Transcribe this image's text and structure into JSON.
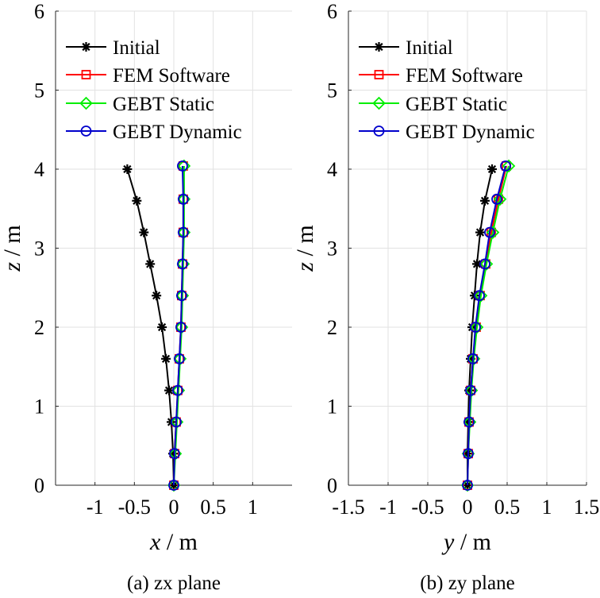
{
  "chart_data": [
    {
      "type": "line",
      "caption": "(a) zx plane",
      "xlabel_var": "x",
      "xlabel_unit": " / m",
      "ylabel_var": "z",
      "ylabel_unit": " / m",
      "xlim": [
        -1.5,
        1.5
      ],
      "ylim": [
        0,
        6
      ],
      "xticks": [
        -1,
        -0.5,
        0,
        0.5,
        1
      ],
      "xtick_labels": [
        "-1",
        "-0.5",
        "0",
        "0.5",
        "1"
      ],
      "yticks": [
        0,
        1,
        2,
        3,
        4,
        5,
        6
      ],
      "ytick_labels": [
        "0",
        "1",
        "2",
        "3",
        "4",
        "5",
        "6"
      ],
      "grid": true,
      "legend_position": "top-left",
      "series": [
        {
          "name": "Initial",
          "color": "#000000",
          "marker": "asterisk",
          "x": [
            0,
            -0.01,
            -0.03,
            -0.06,
            -0.1,
            -0.15,
            -0.22,
            -0.3,
            -0.38,
            -0.47,
            -0.59
          ],
          "y": [
            0,
            0.4,
            0.8,
            1.2,
            1.6,
            2.0,
            2.4,
            2.8,
            3.2,
            3.6,
            4.0
          ]
        },
        {
          "name": "FEM Software",
          "color": "#ff0000",
          "marker": "square",
          "x": [
            0,
            0.01,
            0.03,
            0.05,
            0.07,
            0.09,
            0.1,
            0.11,
            0.12,
            0.12,
            0.12
          ],
          "y": [
            0,
            0.4,
            0.8,
            1.2,
            1.6,
            2.0,
            2.4,
            2.8,
            3.2,
            3.62,
            4.04
          ]
        },
        {
          "name": "GEBT Static",
          "color": "#00ee00",
          "marker": "diamond",
          "x": [
            0,
            0.02,
            0.04,
            0.06,
            0.08,
            0.1,
            0.11,
            0.12,
            0.13,
            0.13,
            0.13
          ],
          "y": [
            0,
            0.4,
            0.8,
            1.2,
            1.6,
            2.0,
            2.4,
            2.8,
            3.2,
            3.62,
            4.04
          ]
        },
        {
          "name": "GEBT Dynamic",
          "color": "#0000cc",
          "marker": "circle",
          "x": [
            0,
            0.01,
            0.03,
            0.05,
            0.07,
            0.09,
            0.1,
            0.11,
            0.12,
            0.12,
            0.11
          ],
          "y": [
            0,
            0.4,
            0.8,
            1.2,
            1.6,
            2.0,
            2.4,
            2.8,
            3.2,
            3.62,
            4.04
          ]
        }
      ]
    },
    {
      "type": "line",
      "caption": "(b) zy plane",
      "xlabel_var": "y",
      "xlabel_unit": " / m",
      "ylabel_var": "z",
      "ylabel_unit": " / m",
      "xlim": [
        -1.5,
        1.5
      ],
      "ylim": [
        0,
        6
      ],
      "xticks": [
        -1.5,
        -1,
        -0.5,
        0,
        0.5,
        1,
        1.5
      ],
      "xtick_labels": [
        "-1.5",
        "-1",
        "-0.5",
        "0",
        "0.5",
        "1",
        "1.5"
      ],
      "yticks": [
        0,
        1,
        2,
        3,
        4,
        5,
        6
      ],
      "ytick_labels": [
        "0",
        "1",
        "2",
        "3",
        "4",
        "5",
        "6"
      ],
      "grid": true,
      "legend_position": "top-left",
      "series": [
        {
          "name": "Initial",
          "color": "#000000",
          "marker": "asterisk",
          "x": [
            0,
            0,
            0.01,
            0.02,
            0.04,
            0.06,
            0.09,
            0.12,
            0.16,
            0.22,
            0.31
          ],
          "y": [
            0,
            0.4,
            0.8,
            1.2,
            1.6,
            2.0,
            2.4,
            2.8,
            3.2,
            3.6,
            4.0
          ]
        },
        {
          "name": "FEM Software",
          "color": "#ff0000",
          "marker": "square",
          "x": [
            0,
            0.01,
            0.02,
            0.04,
            0.07,
            0.11,
            0.16,
            0.23,
            0.3,
            0.39,
            0.49
          ],
          "y": [
            0,
            0.4,
            0.8,
            1.2,
            1.6,
            2.0,
            2.4,
            2.8,
            3.2,
            3.62,
            4.04
          ]
        },
        {
          "name": "GEBT Static",
          "color": "#00ee00",
          "marker": "diamond",
          "x": [
            0,
            0.01,
            0.03,
            0.05,
            0.08,
            0.12,
            0.17,
            0.24,
            0.32,
            0.41,
            0.52
          ],
          "y": [
            0,
            0.4,
            0.8,
            1.2,
            1.6,
            2.0,
            2.4,
            2.8,
            3.2,
            3.62,
            4.04
          ]
        },
        {
          "name": "GEBT Dynamic",
          "color": "#0000cc",
          "marker": "circle",
          "x": [
            0,
            0.01,
            0.02,
            0.04,
            0.07,
            0.1,
            0.15,
            0.22,
            0.28,
            0.37,
            0.48
          ],
          "y": [
            0,
            0.4,
            0.8,
            1.2,
            1.6,
            2.0,
            2.4,
            2.8,
            3.2,
            3.62,
            4.04
          ]
        }
      ]
    }
  ]
}
